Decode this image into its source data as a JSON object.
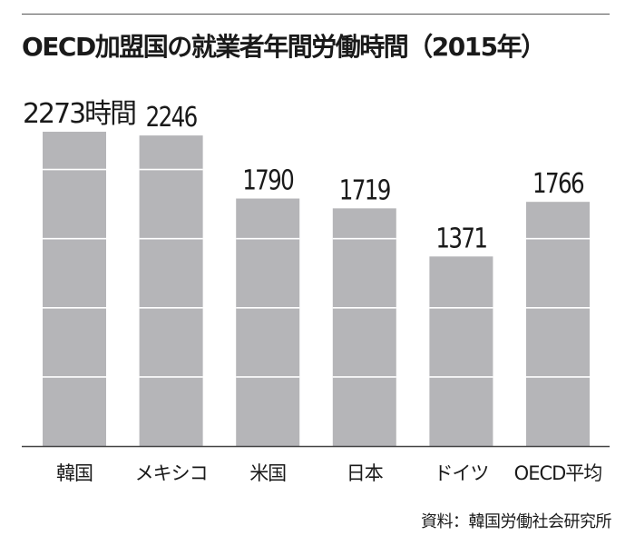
{
  "colors": {
    "bar": "#b5b5b8",
    "gridline": "#ffffff",
    "axis": "#444444",
    "text": "#1a1a1a"
  },
  "chart_data": {
    "type": "bar",
    "title": "OECD加盟国の就業者年間労働時間（2015年）",
    "categories": [
      "韓国",
      "メキシコ",
      "米国",
      "日本",
      "ドイツ",
      "OECD平均"
    ],
    "values": [
      2273,
      2246,
      1790,
      1719,
      1371,
      1766
    ],
    "data_labels": [
      "2273時間",
      "2246",
      "1790",
      "1719",
      "1371",
      "1766"
    ],
    "unit": "時間",
    "xlabel": "",
    "ylabel": "",
    "ylim": [
      0,
      2273
    ],
    "grid": true,
    "gridlines": [
      500,
      1000,
      1500,
      2000
    ],
    "legend": "none",
    "source": "資料：韓国労働社会研究所"
  }
}
